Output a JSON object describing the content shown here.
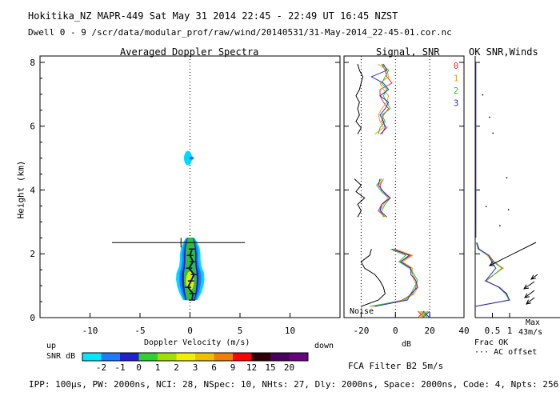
{
  "header": {
    "title": "Hokitika_NZ  MAPR-449  Sat May 31 2014 22:45 - 22:49 UT 16:45 NZST",
    "dwell": "Dwell  0 - 9   /scr/data/modular_prof/raw/wind/20140531/31-May-2014_22-45-01.cor.nc"
  },
  "spectra_panel": {
    "title": "Averaged Doppler Spectra",
    "ylabel": "Height (km)",
    "xlabel": "Doppler Velocity (m/s)",
    "up_label": "up",
    "down_label": "down"
  },
  "signal_panel": {
    "title": "Signal, SNR",
    "xlabel": "dB",
    "noise_label": "Noise"
  },
  "wind_panel": {
    "title": "OK SNR,Winds",
    "frac_label": "Frac OK",
    "offset_label": "··· AC offset",
    "max_label": "Max",
    "max_value": "43m/s"
  },
  "legend_dwell": [
    {
      "label": "0",
      "color": "#e8332a"
    },
    {
      "label": "1",
      "color": "#f0a020"
    },
    {
      "label": "2",
      "color": "#30c030"
    },
    {
      "label": "3",
      "color": "#3030d0"
    }
  ],
  "snr_scale": {
    "label": "SNR dB",
    "ticks": [
      "-2",
      "-1",
      "0",
      "1",
      "2",
      "3",
      "6",
      "9",
      "12",
      "15",
      "20"
    ],
    "colors": [
      "#00e8ff",
      "#1e7bff",
      "#2020d0",
      "#30d030",
      "#a0e000",
      "#f0f000",
      "#f0c000",
      "#f08000",
      "#ff0000",
      "#300000",
      "#4a0060",
      "#6a0080"
    ]
  },
  "filter_label": "FCA Filter B2  5m/s",
  "footer": "IPP: 100μs,  PW: 2000ns,  NCI: 28,  NSpec: 10, NHts: 27,  Dly: 2000ns,  Space: 2000ns,  Code: 4,  Npts: 256",
  "chart_data": [
    {
      "type": "heatmap",
      "name": "Averaged Doppler Spectra",
      "xlim": [
        -15,
        15
      ],
      "ylim": [
        0,
        8.2
      ],
      "xticks": [
        -10,
        -5,
        0,
        5,
        10
      ],
      "yticks": [
        0,
        2,
        4,
        6,
        8
      ],
      "mean_velocity_profile": [
        {
          "h": 0.55,
          "v": 0.2
        },
        {
          "h": 0.75,
          "v": 0.3
        },
        {
          "h": 0.95,
          "v": -0.2
        },
        {
          "h": 1.15,
          "v": 0.1
        },
        {
          "h": 1.35,
          "v": 0.4
        },
        {
          "h": 1.55,
          "v": -0.1
        },
        {
          "h": 1.75,
          "v": 0.3
        },
        {
          "h": 1.95,
          "v": 0.0
        },
        {
          "h": 2.15,
          "v": 0.2
        }
      ],
      "error_bar": {
        "h": 2.35,
        "vmin": -7.8,
        "vmax": 5.5,
        "center": -0.9
      }
    },
    {
      "type": "line",
      "name": "Signal, SNR",
      "xlim": [
        -30,
        40
      ],
      "xticks": [
        -20,
        0,
        20,
        40
      ],
      "heights": [
        0.35,
        0.55,
        0.75,
        0.95,
        1.15,
        1.35,
        1.55,
        1.75,
        1.95,
        2.15,
        2.35,
        2.55,
        2.75,
        2.95,
        3.15,
        3.35,
        3.55,
        3.75,
        3.95,
        4.15,
        4.35,
        4.55,
        4.75,
        4.95,
        5.15,
        5.35,
        5.55,
        5.75,
        5.95,
        6.15,
        6.35,
        6.55,
        6.75,
        6.95,
        7.15,
        7.35,
        7.55,
        7.75,
        7.95
      ],
      "series": [
        {
          "name": "0",
          "color": "#e8332a",
          "values": [
            -13,
            4,
            10,
            12,
            12,
            10,
            9,
            3,
            9,
            -1,
            null,
            null,
            null,
            null,
            -6,
            -10,
            -8,
            -4,
            -8,
            -9,
            -7,
            null,
            null,
            null,
            null,
            null,
            null,
            -9,
            -5,
            -8,
            -7,
            -4,
            -7,
            -9,
            -9,
            -2,
            -5,
            -6,
            -8
          ]
        },
        {
          "name": "1",
          "color": "#f0a020",
          "values": [
            -14,
            5,
            11,
            13,
            11,
            10,
            10,
            4,
            10,
            0,
            null,
            null,
            null,
            null,
            -6,
            -9,
            -7,
            -4,
            -7,
            -10,
            -7,
            null,
            null,
            null,
            null,
            null,
            null,
            -12,
            -7,
            -9,
            -10,
            -8,
            -5,
            -4,
            -7,
            -9,
            -4,
            -5,
            -10
          ]
        },
        {
          "name": "2",
          "color": "#30c030",
          "values": [
            -15,
            6,
            9,
            11,
            13,
            11,
            8,
            2,
            6,
            -3,
            null,
            null,
            null,
            null,
            -7,
            -8,
            -6,
            -3,
            -8,
            -11,
            -8,
            null,
            null,
            null,
            null,
            null,
            null,
            -10,
            -9,
            -6,
            -8,
            -3,
            -5,
            -7,
            -5,
            -8,
            -6,
            -4,
            -8
          ]
        },
        {
          "name": "3",
          "color": "#3030d0",
          "values": [
            -12,
            7,
            9,
            13,
            12,
            9,
            9,
            3,
            8,
            -2,
            null,
            null,
            null,
            null,
            -5,
            -9,
            -8,
            -3,
            -7,
            -10,
            -9,
            null,
            null,
            null,
            null,
            null,
            null,
            -8,
            -6,
            -7,
            -9,
            -6,
            -4,
            -9,
            -4,
            -7,
            -14,
            -5,
            -7
          ]
        },
        {
          "name": "Noise",
          "color": "#000000",
          "values": [
            -20,
            -10,
            -6,
            -7,
            -9,
            -12,
            -18,
            -20,
            -15,
            -14,
            null,
            null,
            null,
            null,
            -22,
            -20,
            -22,
            -18,
            -23,
            -20,
            -24,
            null,
            null,
            null,
            null,
            null,
            null,
            -22,
            -20,
            -23,
            -21,
            -22,
            -21,
            -23,
            -21,
            -20,
            -19,
            -21,
            -22
          ]
        }
      ]
    },
    {
      "type": "line",
      "name": "OK SNR,Winds",
      "xlim": [
        0,
        1
      ],
      "xticks": [
        0.5,
        1
      ],
      "series": [
        {
          "name": "0",
          "color": "#e8332a",
          "values": [
            0,
            0.98,
            0.92,
            0.7,
            0.3,
            0.8,
            0.55,
            0.4,
            0.1,
            0.05
          ]
        },
        {
          "name": "1",
          "color": "#f0a020",
          "values": [
            0,
            0.97,
            0.9,
            0.72,
            0.28,
            0.82,
            0.5,
            0.35,
            0.12,
            0.04
          ]
        },
        {
          "name": "2",
          "color": "#30c030",
          "values": [
            0,
            0.99,
            0.88,
            0.68,
            0.32,
            0.78,
            0.52,
            0.38,
            0.08,
            0.03
          ]
        },
        {
          "name": "3",
          "color": "#3030d0",
          "values": [
            0,
            1.0,
            0.91,
            0.69,
            0.3,
            0.6,
            0.48,
            0.4,
            0.11,
            0.05
          ]
        }
      ],
      "heights": [
        0.35,
        0.55,
        0.75,
        0.95,
        1.15,
        1.55,
        1.75,
        1.95,
        2.15,
        2.35
      ]
    }
  ]
}
